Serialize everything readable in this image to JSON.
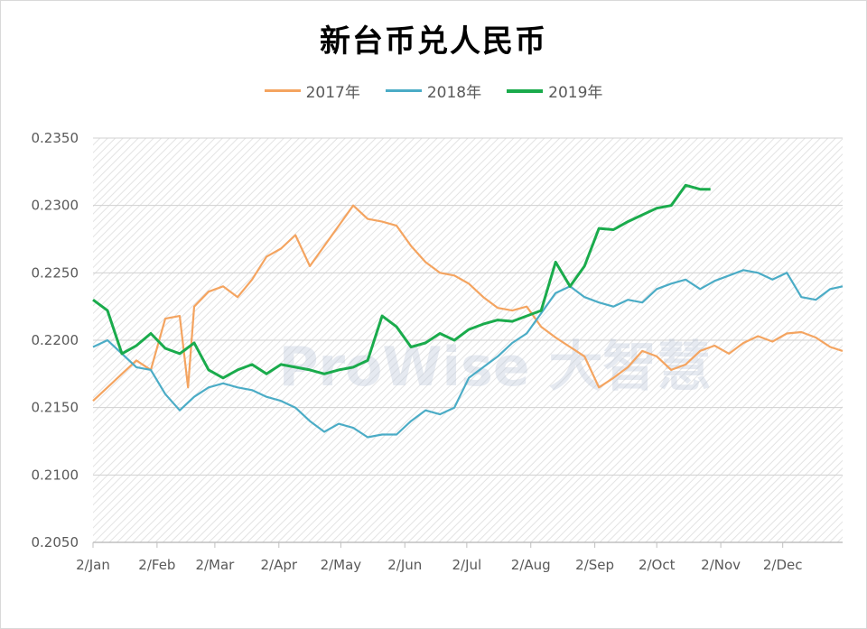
{
  "chart_data": {
    "type": "line",
    "title": "新台币兑人民币",
    "xlabel": "",
    "ylabel": "",
    "x_ticks": [
      "2/Jan",
      "2/Feb",
      "2/Mar",
      "2/Apr",
      "2/May",
      "2/Jun",
      "2/Jul",
      "2/Aug",
      "2/Sep",
      "2/Oct",
      "2/Nov",
      "2/Dec"
    ],
    "x_range": [
      "2/Jan",
      "31/Dec"
    ],
    "y_ticks": [
      "0.2050",
      "0.2100",
      "0.2150",
      "0.2200",
      "0.2250",
      "0.2300",
      "0.2350"
    ],
    "ylim": [
      0.205,
      0.235
    ],
    "grid": true,
    "legend_position": "top-center",
    "watermark": "ProWise 大智慧",
    "series": [
      {
        "name": "2017年",
        "color": "#F4A460",
        "x": [
          "2/Jan",
          "9/Jan",
          "16/Jan",
          "23/Jan",
          "30/Jan",
          "6/Feb",
          "13/Feb",
          "17/Feb",
          "20/Feb",
          "27/Feb",
          "6/Mar",
          "13/Mar",
          "20/Mar",
          "27/Mar",
          "3/Apr",
          "10/Apr",
          "17/Apr",
          "24/Apr",
          "1/May",
          "8/May",
          "15/May",
          "22/May",
          "29/May",
          "5/Jun",
          "12/Jun",
          "19/Jun",
          "26/Jun",
          "3/Jul",
          "10/Jul",
          "17/Jul",
          "24/Jul",
          "31/Jul",
          "7/Aug",
          "14/Aug",
          "21/Aug",
          "28/Aug",
          "4/Sep",
          "11/Sep",
          "18/Sep",
          "25/Sep",
          "2/Oct",
          "9/Oct",
          "16/Oct",
          "23/Oct",
          "30/Oct",
          "6/Nov",
          "13/Nov",
          "20/Nov",
          "27/Nov",
          "4/Dec",
          "11/Dec",
          "18/Dec",
          "25/Dec",
          "31/Dec"
        ],
        "values": [
          0.2155,
          0.2165,
          0.2175,
          0.2185,
          0.2178,
          0.2216,
          0.2218,
          0.2165,
          0.2225,
          0.2236,
          0.224,
          0.2232,
          0.2245,
          0.2262,
          0.2268,
          0.2278,
          0.2255,
          0.227,
          0.2285,
          0.23,
          0.229,
          0.2288,
          0.2285,
          0.227,
          0.2258,
          0.225,
          0.2248,
          0.2242,
          0.2232,
          0.2224,
          0.2222,
          0.2225,
          0.221,
          0.2202,
          0.2195,
          0.2188,
          0.2165,
          0.2172,
          0.218,
          0.2192,
          0.2188,
          0.2178,
          0.2182,
          0.2192,
          0.2196,
          0.219,
          0.2198,
          0.2203,
          0.2199,
          0.2205,
          0.2206,
          0.2202,
          0.2195,
          0.2192
        ]
      },
      {
        "name": "2018年",
        "color": "#4BACC6",
        "x": [
          "2/Jan",
          "9/Jan",
          "16/Jan",
          "23/Jan",
          "30/Jan",
          "6/Feb",
          "13/Feb",
          "20/Feb",
          "27/Feb",
          "6/Mar",
          "13/Mar",
          "20/Mar",
          "27/Mar",
          "3/Apr",
          "10/Apr",
          "17/Apr",
          "24/Apr",
          "1/May",
          "8/May",
          "15/May",
          "22/May",
          "29/May",
          "5/Jun",
          "12/Jun",
          "19/Jun",
          "26/Jun",
          "3/Jul",
          "10/Jul",
          "17/Jul",
          "24/Jul",
          "31/Jul",
          "7/Aug",
          "14/Aug",
          "21/Aug",
          "28/Aug",
          "4/Sep",
          "11/Sep",
          "18/Sep",
          "25/Sep",
          "2/Oct",
          "9/Oct",
          "16/Oct",
          "23/Oct",
          "30/Oct",
          "6/Nov",
          "13/Nov",
          "20/Nov",
          "27/Nov",
          "4/Dec",
          "11/Dec",
          "18/Dec",
          "25/Dec",
          "31/Dec"
        ],
        "values": [
          0.2195,
          0.22,
          0.219,
          0.218,
          0.2178,
          0.216,
          0.2148,
          0.2158,
          0.2165,
          0.2168,
          0.2165,
          0.2163,
          0.2158,
          0.2155,
          0.215,
          0.214,
          0.2132,
          0.2138,
          0.2135,
          0.2128,
          0.213,
          0.213,
          0.214,
          0.2148,
          0.2145,
          0.215,
          0.2172,
          0.218,
          0.2188,
          0.2198,
          0.2205,
          0.222,
          0.2235,
          0.224,
          0.2232,
          0.2228,
          0.2225,
          0.223,
          0.2228,
          0.2238,
          0.2242,
          0.2245,
          0.2238,
          0.2244,
          0.2248,
          0.2252,
          0.225,
          0.2245,
          0.225,
          0.2232,
          0.223,
          0.2238,
          0.224
        ]
      },
      {
        "name": "2019年",
        "color": "#1AAB4C",
        "x": [
          "2/Jan",
          "9/Jan",
          "16/Jan",
          "23/Jan",
          "30/Jan",
          "6/Feb",
          "13/Feb",
          "20/Feb",
          "27/Feb",
          "6/Mar",
          "13/Mar",
          "20/Mar",
          "27/Mar",
          "3/Apr",
          "10/Apr",
          "17/Apr",
          "24/Apr",
          "1/May",
          "8/May",
          "15/May",
          "22/May",
          "29/May",
          "5/Jun",
          "12/Jun",
          "19/Jun",
          "26/Jun",
          "3/Jul",
          "10/Jul",
          "17/Jul",
          "24/Jul",
          "31/Jul",
          "7/Aug",
          "14/Aug",
          "21/Aug",
          "28/Aug",
          "4/Sep",
          "11/Sep",
          "18/Sep",
          "25/Sep",
          "2/Oct",
          "9/Oct",
          "16/Oct",
          "23/Oct",
          "28/Oct"
        ],
        "values": [
          0.223,
          0.2222,
          0.219,
          0.2196,
          0.2205,
          0.2194,
          0.219,
          0.2198,
          0.2178,
          0.2172,
          0.2178,
          0.2182,
          0.2175,
          0.2182,
          0.218,
          0.2178,
          0.2175,
          0.2178,
          0.218,
          0.2185,
          0.2218,
          0.221,
          0.2195,
          0.2198,
          0.2205,
          0.22,
          0.2208,
          0.2212,
          0.2215,
          0.2214,
          0.2218,
          0.2222,
          0.2258,
          0.224,
          0.2255,
          0.2283,
          0.2282,
          0.2288,
          0.2293,
          0.2298,
          0.23,
          0.2315,
          0.2312,
          0.2312
        ]
      }
    ]
  }
}
